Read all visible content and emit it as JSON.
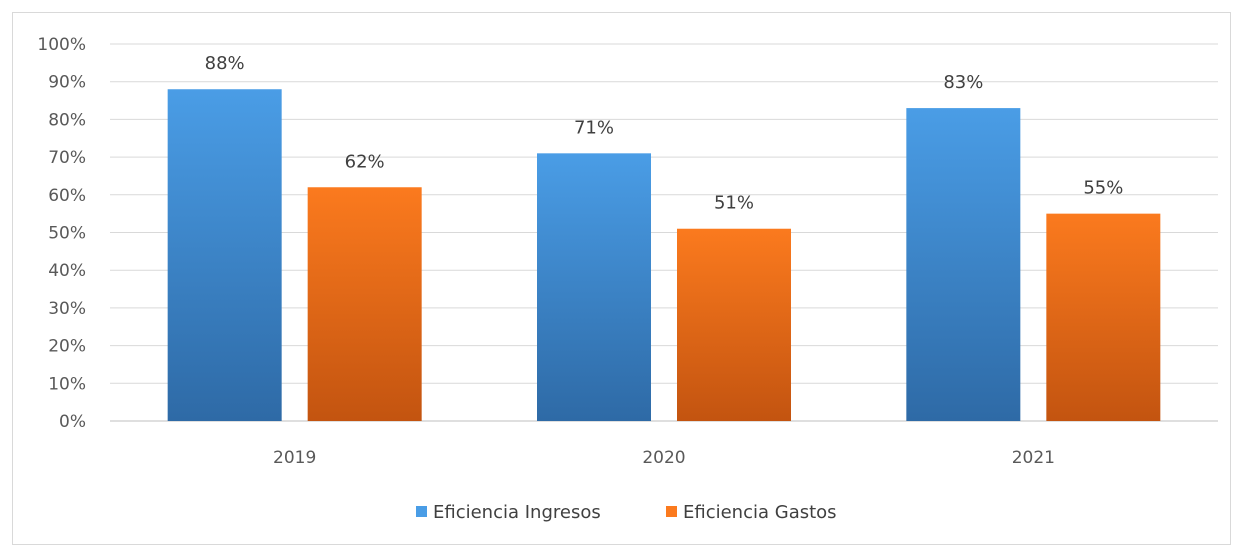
{
  "chart_data": {
    "type": "bar",
    "categories": [
      "2019",
      "2020",
      "2021"
    ],
    "series": [
      {
        "name": "Eficiencia Ingresos",
        "values": [
          88,
          71,
          83
        ],
        "labels": [
          "88%",
          "71%",
          "83%"
        ],
        "color_top": "#4a9de6",
        "color_bottom": "#2e6aa6"
      },
      {
        "name": "Eficiencia Gastos",
        "values": [
          62,
          51,
          55
        ],
        "labels": [
          "62%",
          "51%",
          "55%"
        ],
        "color_top": "#fb7a1e",
        "color_bottom": "#c35410"
      }
    ],
    "ylim": [
      0,
      100
    ],
    "yticks": [
      "0%",
      "10%",
      "20%",
      "30%",
      "40%",
      "50%",
      "60%",
      "70%",
      "80%",
      "90%",
      "100%"
    ],
    "grid": true,
    "legend_position": "bottom"
  }
}
